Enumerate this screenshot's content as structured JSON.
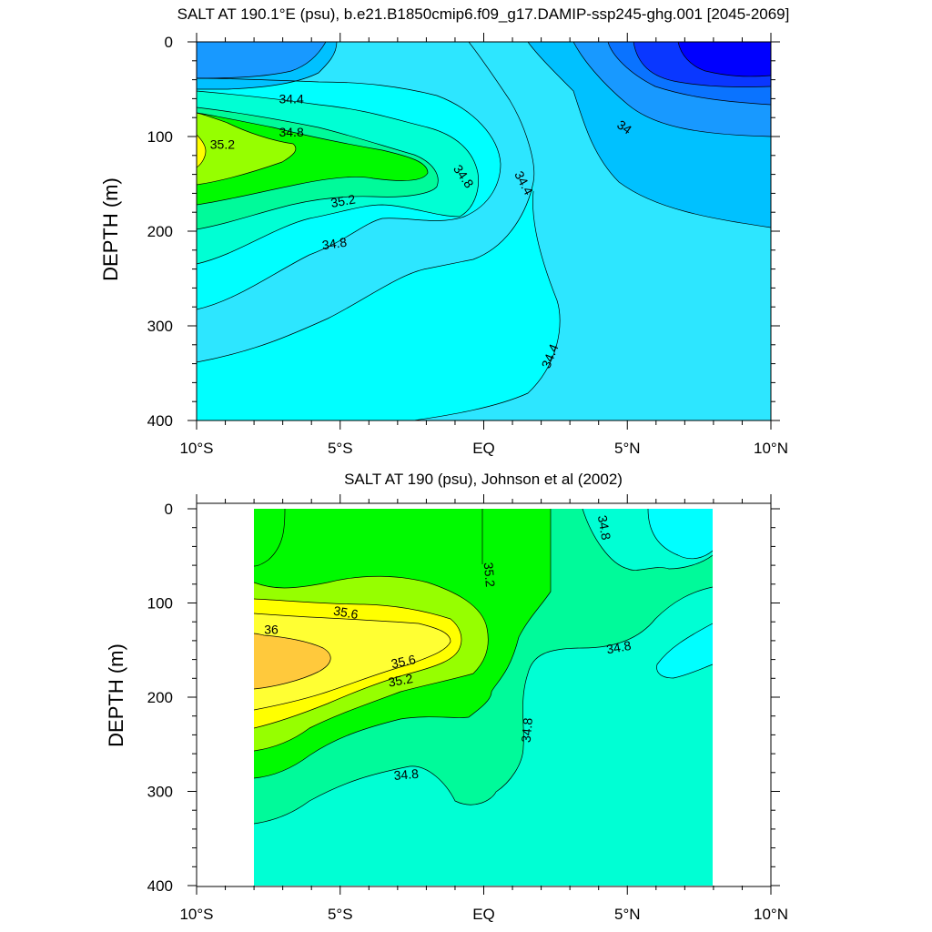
{
  "colors": {
    "lev_33_4": "#0000ff",
    "lev_33_6": "#0a37ff",
    "lev_33_8": "#0a73ff",
    "lev_34_0": "#1899ff",
    "lev_34_2": "#00c1ff",
    "lev_34_4": "#2de6ff",
    "lev_34_6": "#00ffff",
    "lev_34_8": "#00ffd4",
    "lev_35_0": "#00fa9a",
    "lev_35_2": "#00fa00",
    "lev_35_4": "#96ff00",
    "lev_35_6": "#ffff00",
    "lev_35_8": "#ffff33",
    "lev_36_0": "#ffc93c"
  },
  "chart_data": [
    {
      "type": "contour",
      "title": "SALT AT 190.1°E (psu), b.e21.B1850cmip6.f09_g17.DAMIP-ssp245-ghg.001 [2045-2069]",
      "ylabel": "DEPTH (m)",
      "xlabel": "",
      "x_ticks": [
        "10°S",
        "5°S",
        "EQ",
        "5°N",
        "10°N"
      ],
      "x_tick_values": [
        -10,
        -5,
        0,
        5,
        10
      ],
      "y_ticks": [
        "0",
        "100",
        "200",
        "300",
        "400"
      ],
      "y_tick_values": [
        0,
        100,
        200,
        300,
        400
      ],
      "xlim": [
        -10,
        10
      ],
      "ylim": [
        0,
        400
      ],
      "y_reversed": true,
      "contour_labels": [
        {
          "text": "34.4",
          "lat": -6.7,
          "depth": 60,
          "rot": 0
        },
        {
          "text": "34.8",
          "lat": -6.7,
          "depth": 95,
          "rot": 0
        },
        {
          "text": "35.2",
          "lat": -9.1,
          "depth": 108,
          "rot": 0
        },
        {
          "text": "35.2",
          "lat": -4.9,
          "depth": 168,
          "rot": -10
        },
        {
          "text": "34.8",
          "lat": -5.2,
          "depth": 213,
          "rot": -8
        },
        {
          "text": "34.8",
          "lat": -0.7,
          "depth": 142,
          "rot": 55
        },
        {
          "text": "34.4",
          "lat": 1.4,
          "depth": 149,
          "rot": 62
        },
        {
          "text": "34.4",
          "lat": 2.3,
          "depth": 332,
          "rot": -68
        },
        {
          "text": "34",
          "lat": 4.9,
          "depth": 90,
          "rot": 35
        }
      ]
    },
    {
      "type": "contour",
      "title": "SALT AT 190 (psu), Johnson et al (2002)",
      "ylabel": "DEPTH (m)",
      "xlabel": "",
      "x_ticks": [
        "10°S",
        "5°S",
        "EQ",
        "5°N",
        "10°N"
      ],
      "x_tick_values": [
        -10,
        -5,
        0,
        5,
        10
      ],
      "y_ticks": [
        "0",
        "100",
        "200",
        "300",
        "400"
      ],
      "y_tick_values": [
        0,
        100,
        200,
        300,
        400
      ],
      "xlim": [
        -10,
        10
      ],
      "ylim": [
        0,
        400
      ],
      "y_reversed": true,
      "data_lat_range": [
        -8,
        8
      ],
      "contour_labels": [
        {
          "text": "34.8",
          "lat": 4.2,
          "depth": 20,
          "rot": 80
        },
        {
          "text": "35.2",
          "lat": 0.2,
          "depth": 70,
          "rot": 85
        },
        {
          "text": "35.6",
          "lat": -4.8,
          "depth": 110,
          "rot": 10
        },
        {
          "text": "36",
          "lat": -7.4,
          "depth": 128,
          "rot": 0
        },
        {
          "text": "35.6",
          "lat": -2.8,
          "depth": 162,
          "rot": -12
        },
        {
          "text": "35.2",
          "lat": -2.9,
          "depth": 182,
          "rot": -10
        },
        {
          "text": "34.8",
          "lat": 4.7,
          "depth": 147,
          "rot": -10
        },
        {
          "text": "34.8",
          "lat": 1.5,
          "depth": 235,
          "rot": -85
        },
        {
          "text": "34.8",
          "lat": -2.7,
          "depth": 282,
          "rot": -5
        }
      ]
    }
  ]
}
